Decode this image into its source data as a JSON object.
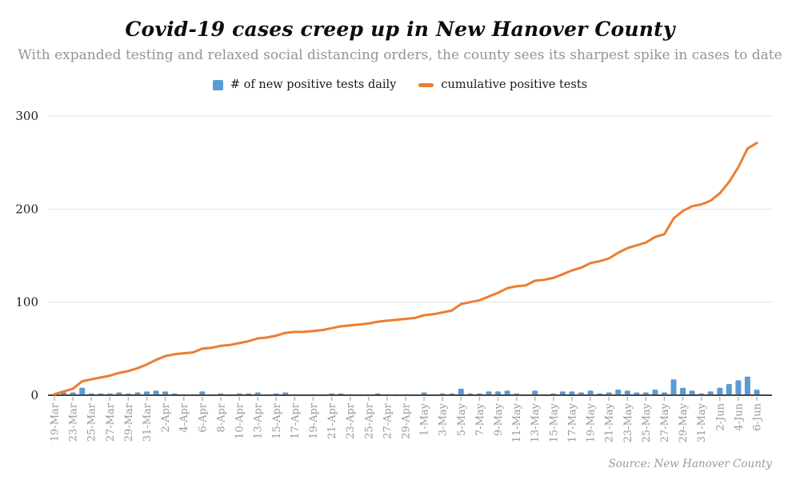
{
  "header": {
    "title": "Covid-19 cases creep up in New Hanover County",
    "subtitle": "With expanded testing and relaxed social distancing orders, the county sees its sharpest spike in cases to date"
  },
  "legend": [
    {
      "label": "# of new positive tests daily",
      "swatch": "square",
      "color": "#5B9BD5"
    },
    {
      "label": "cumulative positive tests",
      "swatch": "dash",
      "color": "#ED7D31"
    }
  ],
  "source": "Source: New Hanover County",
  "chart_data": {
    "type": "bar+line",
    "title": "Covid-19 cases creep up in New Hanover County",
    "x": [
      "19-Mar",
      "20-Mar",
      "23-Mar",
      "24-Mar",
      "25-Mar",
      "26-Mar",
      "27-Mar",
      "28-Mar",
      "29-Mar",
      "30-Mar",
      "31-Mar",
      "1-Apr",
      "2-Apr",
      "3-Apr",
      "4-Apr",
      "5-Apr",
      "6-Apr",
      "7-Apr",
      "8-Apr",
      "9-Apr",
      "10-Apr",
      "12-Apr",
      "13-Apr",
      "14-Apr",
      "15-Apr",
      "16-Apr",
      "17-Apr",
      "18-Apr",
      "19-Apr",
      "20-Apr",
      "21-Apr",
      "22-Apr",
      "23-Apr",
      "24-Apr",
      "25-Apr",
      "26-Apr",
      "27-Apr",
      "28-Apr",
      "29-Apr",
      "30-Apr",
      "1-May",
      "2-May",
      "3-May",
      "4-May",
      "5-May",
      "6-May",
      "7-May",
      "8-May",
      "9-May",
      "10-May",
      "11-May",
      "12-May",
      "13-May",
      "14-May",
      "15-May",
      "16-May",
      "17-May",
      "18-May",
      "19-May",
      "20-May",
      "21-May",
      "22-May",
      "23-May",
      "24-May",
      "25-May",
      "26-May",
      "27-May",
      "28-May",
      "29-May",
      "30-May",
      "31-May",
      "1-Jun",
      "2-Jun",
      "3-Jun",
      "4-Jun",
      "5-Jun",
      "6-Jun"
    ],
    "series": [
      {
        "name": "# of new positive tests daily",
        "type": "bar",
        "color": "#5B9BD5",
        "values": [
          1,
          3,
          3,
          8,
          2,
          2,
          2,
          3,
          2,
          3,
          4,
          5,
          4,
          2,
          1,
          1,
          4,
          1,
          2,
          1,
          2,
          2,
          3,
          1,
          2,
          3,
          1,
          0,
          1,
          1,
          2,
          2,
          1,
          1,
          1,
          2,
          1,
          1,
          1,
          1,
          3,
          1,
          2,
          2,
          7,
          2,
          2,
          4,
          4,
          5,
          2,
          1,
          5,
          1,
          2,
          4,
          4,
          3,
          5,
          2,
          3,
          6,
          5,
          3,
          3,
          6,
          3,
          17,
          8,
          5,
          2,
          4,
          8,
          12,
          16,
          20,
          6
        ]
      },
      {
        "name": "cumulative positive tests",
        "type": "line",
        "color": "#ED7D31",
        "values": [
          1,
          4,
          7,
          15,
          17,
          19,
          21,
          24,
          26,
          29,
          33,
          38,
          42,
          44,
          45,
          46,
          50,
          51,
          53,
          54,
          56,
          58,
          61,
          62,
          64,
          67,
          68,
          68,
          69,
          70,
          72,
          74,
          75,
          76,
          77,
          79,
          80,
          81,
          82,
          83,
          86,
          87,
          89,
          91,
          98,
          100,
          102,
          106,
          110,
          115,
          117,
          118,
          123,
          124,
          126,
          130,
          134,
          137,
          142,
          144,
          147,
          153,
          158,
          161,
          164,
          170,
          173,
          190,
          198,
          203,
          205,
          209,
          217,
          229,
          245,
          265,
          271
        ]
      }
    ],
    "y_ticks": [
      0,
      100,
      200,
      300
    ],
    "ylim": [
      0,
      300
    ],
    "x_label_every": 2,
    "grid": "horizontal",
    "legend_position": "top"
  }
}
